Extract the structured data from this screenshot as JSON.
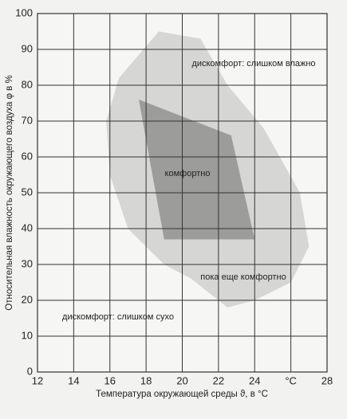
{
  "chart_data": {
    "type": "polygon",
    "x_label": "Температура окружающей среды ϑ, в °C",
    "y_label": "Относительная влажность окружающего воздуха φ в %",
    "xlim": [
      12,
      28
    ],
    "xticks": [
      12,
      14,
      16,
      18,
      20,
      22,
      24,
      {
        "value": 26,
        "label": "°C"
      },
      28
    ],
    "ylim": [
      0,
      100
    ],
    "yticks": [
      0,
      10,
      20,
      30,
      40,
      50,
      60,
      70,
      80,
      90,
      100
    ],
    "grid": true,
    "regions": [
      {
        "color": "#d6d6d4",
        "x": [
          15.8,
          16.5,
          18.7,
          21,
          22.5,
          24.5,
          26.5,
          27,
          26,
          24,
          22.5,
          20.5,
          19,
          17,
          16
        ],
        "y": [
          70,
          82,
          95,
          93,
          80,
          68,
          50,
          35,
          25,
          20,
          18,
          26,
          30,
          40,
          55
        ]
      },
      {
        "color": "#9c9c9a",
        "x": [
          17.6,
          22.7,
          24,
          19,
          18.1
        ],
        "y": [
          76,
          66,
          37,
          37,
          62
        ]
      }
    ],
    "annotations": [
      "дискомфорт: слишком влажно",
      "комфортно",
      "пока еще комфортно",
      "дискомфорт: слишком сухо"
    ]
  }
}
